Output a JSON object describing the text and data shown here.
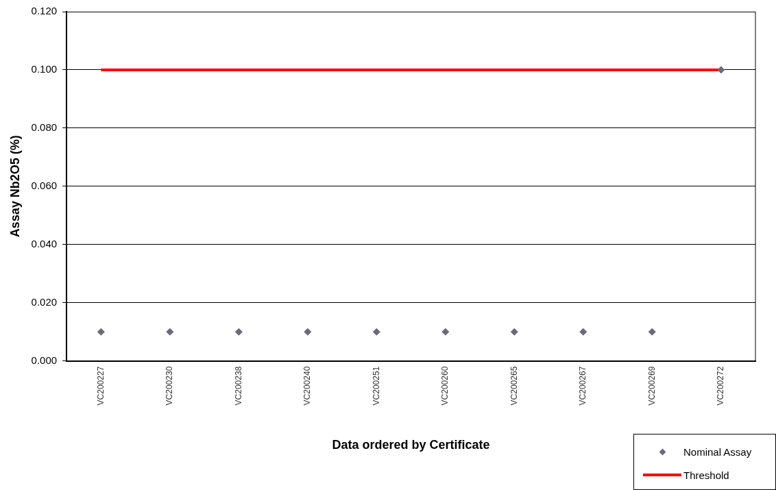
{
  "chart_data": {
    "type": "scatter",
    "xlabel": "Data ordered by Certificate",
    "ylabel": "Assay Nb2O5 (%)",
    "categories": [
      "VC200227",
      "VC200230",
      "VC200238",
      "VC200240",
      "VC200251",
      "VC200260",
      "VC200265",
      "VC200267",
      "VC200269",
      "VC200272"
    ],
    "series": [
      {
        "name": "Nominal Assay",
        "color": "#6b6b78",
        "marker": "diamond",
        "values": [
          0.01,
          0.01,
          0.01,
          0.01,
          0.01,
          0.01,
          0.01,
          0.01,
          0.01,
          0.1
        ]
      },
      {
        "name": "Threshold",
        "type": "line",
        "color": "#ff0000",
        "marker": "none",
        "line_style": "solid",
        "values": [
          0.1,
          0.1,
          0.1,
          0.1,
          0.1,
          0.1,
          0.1,
          0.1,
          0.1,
          0.1
        ]
      }
    ],
    "ylim": [
      0,
      0.12
    ],
    "yticks": [
      {
        "value": 0,
        "label": "0.000"
      },
      {
        "value": 0.02,
        "label": "0.020"
      },
      {
        "value": 0.04,
        "label": "0.040"
      },
      {
        "value": 0.06,
        "label": "0.060"
      },
      {
        "value": 0.08,
        "label": "0.080"
      },
      {
        "value": 0.1,
        "label": "0.100"
      },
      {
        "value": 0.12,
        "label": "0.120"
      }
    ],
    "grid": "y",
    "legend": "bottom right"
  }
}
